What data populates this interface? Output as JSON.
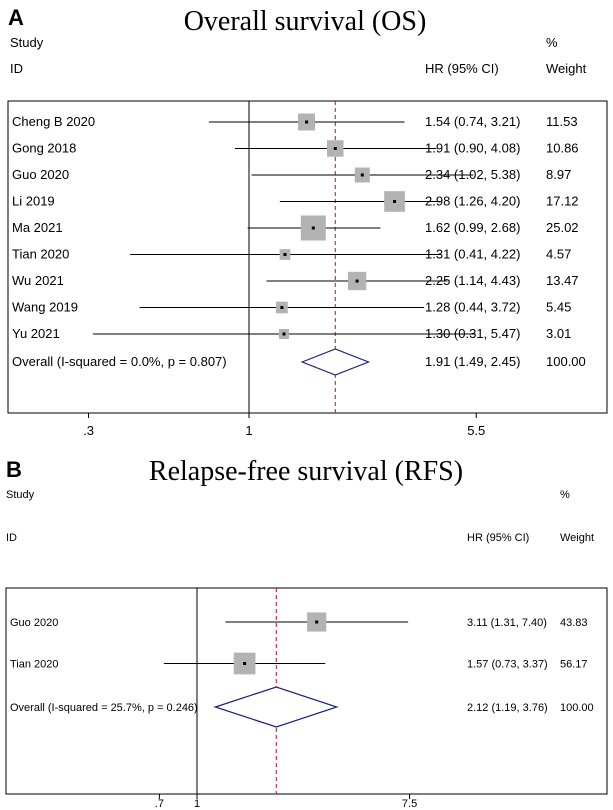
{
  "chart_data": [
    {
      "type": "forest",
      "panel_label": "A",
      "title": "Overall survival (OS)",
      "header": {
        "study_line1": "Study",
        "study_line2": "ID",
        "hr_label": "HR (95% CI)",
        "weight_line1": "%",
        "weight_line2": "Weight"
      },
      "x_ticks": [
        {
          "value": 0.3,
          "label": ".3"
        },
        {
          "value": 1,
          "label": "1"
        },
        {
          "value": 5.5,
          "label": "5.5"
        }
      ],
      "x_scale": "log",
      "null_line": 1,
      "studies": [
        {
          "name": "Cheng B 2020",
          "hr": 1.54,
          "lo": 0.74,
          "hi": 3.21,
          "hr_text": "1.54 (0.74, 3.21)",
          "weight": 11.53,
          "weight_text": "11.53"
        },
        {
          "name": "Gong 2018",
          "hr": 1.91,
          "lo": 0.9,
          "hi": 4.08,
          "hr_text": "1.91 (0.90, 4.08)",
          "weight": 10.86,
          "weight_text": "10.86"
        },
        {
          "name": "Guo 2020",
          "hr": 2.34,
          "lo": 1.02,
          "hi": 5.38,
          "hr_text": "2.34 (1.02, 5.38)",
          "weight": 8.97,
          "weight_text": "8.97"
        },
        {
          "name": "Li 2019",
          "hr": 2.98,
          "lo": 1.26,
          "hi": 4.2,
          "hr_text": "2.98 (1.26, 4.20)",
          "weight": 17.12,
          "weight_text": "17.12"
        },
        {
          "name": "Ma 2021",
          "hr": 1.62,
          "lo": 0.99,
          "hi": 2.68,
          "hr_text": "1.62 (0.99, 2.68)",
          "weight": 25.02,
          "weight_text": "25.02"
        },
        {
          "name": "Tian 2020",
          "hr": 1.31,
          "lo": 0.41,
          "hi": 4.22,
          "hr_text": "1.31 (0.41, 4.22)",
          "weight": 4.57,
          "weight_text": "4.57"
        },
        {
          "name": "Wu 2021",
          "hr": 2.25,
          "lo": 1.14,
          "hi": 4.43,
          "hr_text": "2.25 (1.14, 4.43)",
          "weight": 13.47,
          "weight_text": "13.47"
        },
        {
          "name": "Wang 2019",
          "hr": 1.28,
          "lo": 0.44,
          "hi": 3.72,
          "hr_text": "1.28 (0.44, 3.72)",
          "weight": 5.45,
          "weight_text": "5.45"
        },
        {
          "name": "Yu 2021",
          "hr": 1.3,
          "lo": 0.31,
          "hi": 5.47,
          "hr_text": "1.30 (0.31, 5.47)",
          "weight": 3.01,
          "weight_text": "3.01"
        }
      ],
      "overall": {
        "label": "Overall  (I-squared = 0.0%, p = 0.807)",
        "hr": 1.91,
        "lo": 1.49,
        "hi": 2.45,
        "hr_text": "1.91 (1.49, 2.45)",
        "weight_text": "100.00"
      }
    },
    {
      "type": "forest",
      "panel_label": "B",
      "title": "Relapse-free survival (RFS)",
      "header": {
        "study_line1": "Study",
        "study_line2": "ID",
        "hr_label": "HR (95% CI)",
        "weight_line1": "%",
        "weight_line2": "Weight"
      },
      "x_ticks": [
        {
          "value": 0.7,
          "label": ".7"
        },
        {
          "value": 1,
          "label": "1"
        },
        {
          "value": 7.5,
          "label": "7.5"
        }
      ],
      "x_scale": "log",
      "null_line": 1,
      "studies": [
        {
          "name": "Guo 2020",
          "hr": 3.11,
          "lo": 1.31,
          "hi": 7.4,
          "hr_text": "3.11 (1.31, 7.40)",
          "weight": 43.83,
          "weight_text": "43.83"
        },
        {
          "name": "Tian 2020",
          "hr": 1.57,
          "lo": 0.73,
          "hi": 3.37,
          "hr_text": "1.57 (0.73, 3.37)",
          "weight": 56.17,
          "weight_text": "56.17"
        }
      ],
      "overall": {
        "label": "Overall  (I-squared = 25.7%, p = 0.246)",
        "hr": 2.12,
        "lo": 1.19,
        "hi": 3.76,
        "hr_text": "2.12 (1.19, 3.76)",
        "weight_text": "100.00"
      }
    }
  ],
  "colors": {
    "box": "#b3b3b3",
    "line": "#000000",
    "pooled_line": "#b01030",
    "diamond": "#1a237e"
  }
}
